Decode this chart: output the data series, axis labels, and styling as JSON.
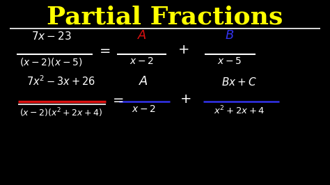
{
  "background_color": "#000000",
  "title": "Partial Fractions",
  "title_color": "#ffff00",
  "white_color": "#ffffff",
  "red_color": "#dd1111",
  "blue_color": "#3333ee"
}
